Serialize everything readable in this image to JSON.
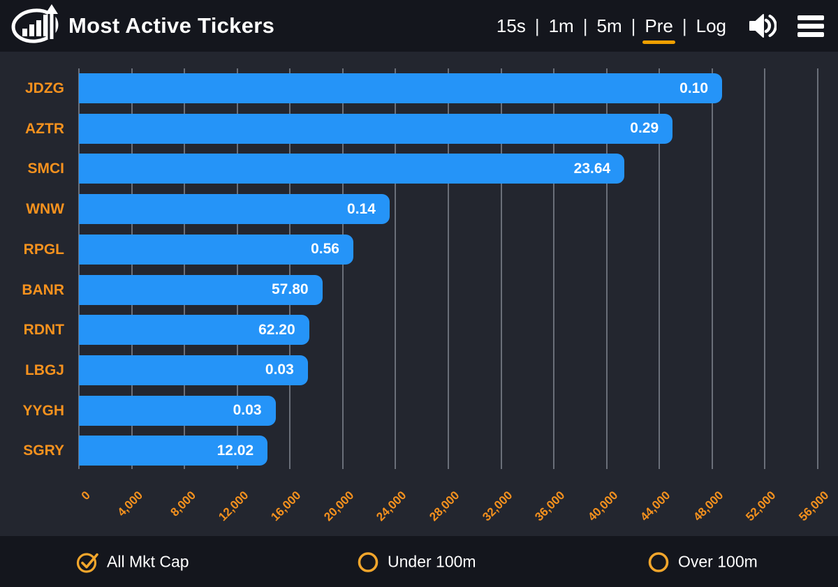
{
  "header": {
    "title": "Most Active Tickers",
    "divider": "|",
    "intervals": [
      {
        "label": "15s",
        "active": false
      },
      {
        "label": "1m",
        "active": false
      },
      {
        "label": "5m",
        "active": false
      },
      {
        "label": "Pre",
        "active": true
      },
      {
        "label": "Log",
        "active": false
      }
    ]
  },
  "chart_data": {
    "type": "bar",
    "orientation": "horizontal",
    "title": "Most Active Tickers",
    "categories": [
      "JDZG",
      "AZTR",
      "SMCI",
      "WNW",
      "RPGL",
      "BANR",
      "RDNT",
      "LBGJ",
      "YYGH",
      "SGRY"
    ],
    "values": [
      48750,
      45000,
      41350,
      23550,
      20800,
      18450,
      17450,
      17350,
      14900,
      14300
    ],
    "bar_labels": [
      "0.10",
      "0.29",
      "23.64",
      "0.14",
      "0.56",
      "57.80",
      "62.20",
      "0.03",
      "0.03",
      "12.02"
    ],
    "xlabel": "",
    "ylabel": "",
    "xlim": [
      0,
      56000
    ],
    "x_ticks": [
      0,
      4000,
      8000,
      12000,
      16000,
      20000,
      24000,
      28000,
      32000,
      36000,
      40000,
      44000,
      48000,
      52000,
      56000
    ],
    "x_tick_labels": [
      "0",
      "4,000",
      "8,000",
      "12,000",
      "16,000",
      "20,000",
      "24,000",
      "28,000",
      "32,000",
      "36,000",
      "40,000",
      "44,000",
      "48,000",
      "52,000",
      "56,000"
    ],
    "grid": true,
    "legend": false,
    "colors": {
      "bar": "#2594f8",
      "category_label": "#f7921e",
      "tick_label": "#f7921e",
      "value_label": "#ffffff",
      "active_underline": "#f0a000",
      "radio": "#f2a62c",
      "header_bg": "#14161d",
      "chart_bg": "#23262f"
    }
  },
  "footer": {
    "options": [
      {
        "label": "All Mkt Cap",
        "selected": true
      },
      {
        "label": "Under 100m",
        "selected": false
      },
      {
        "label": "Over 100m",
        "selected": false
      }
    ]
  }
}
